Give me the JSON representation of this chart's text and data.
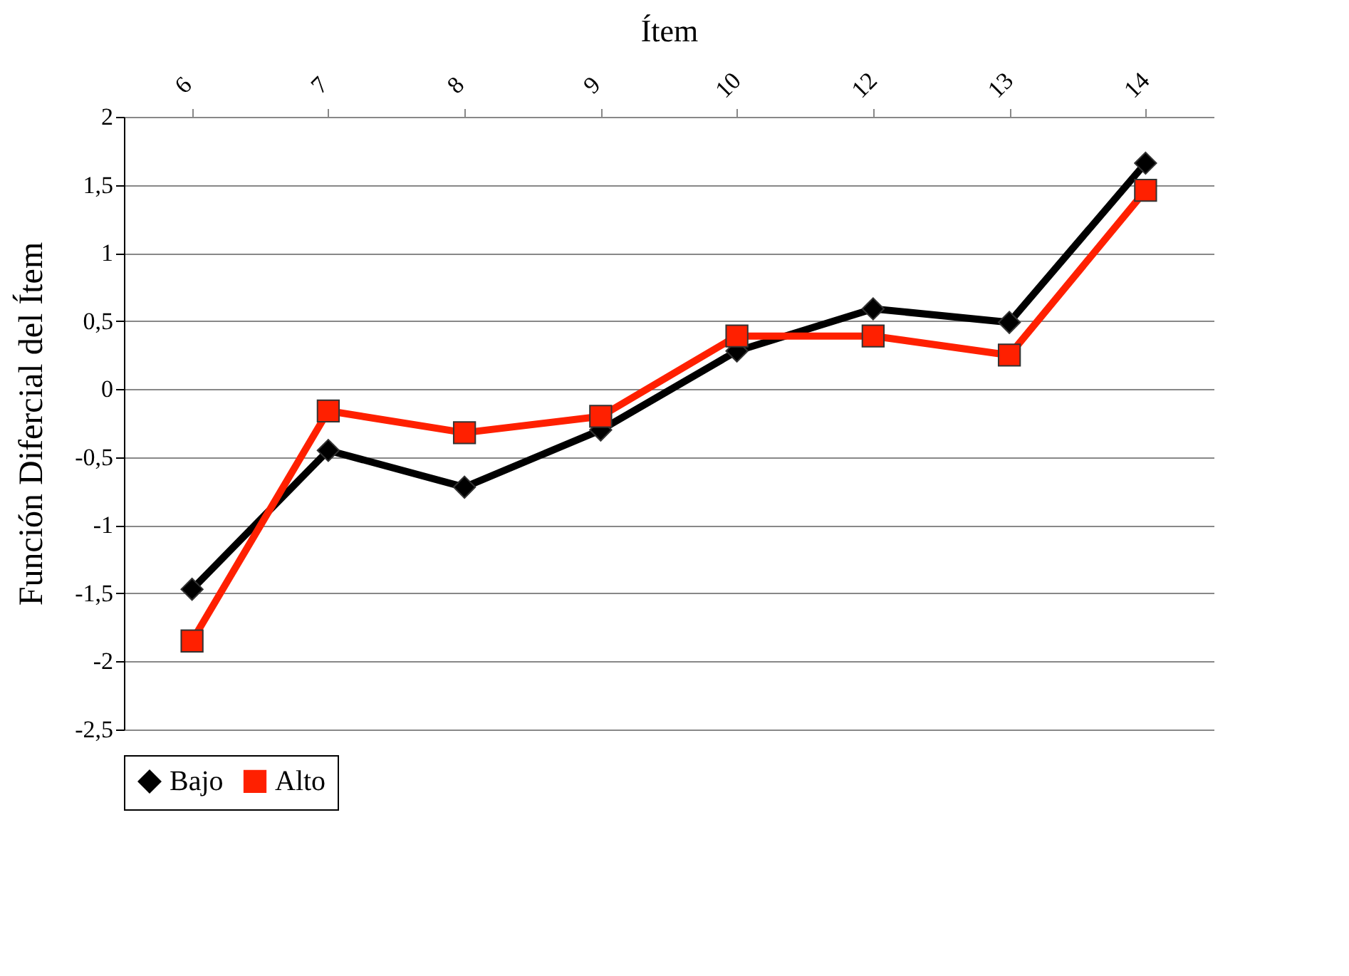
{
  "chart_data": {
    "type": "line",
    "xlabel": "Ítem",
    "ylabel": "Función Difercial del Ítem",
    "categories": [
      "6",
      "7",
      "8",
      "9",
      "10",
      "12",
      "13",
      "14"
    ],
    "series": [
      {
        "name": "Bajo",
        "color": "#000000",
        "marker": "diamond",
        "values": [
          -1.47,
          -0.45,
          -0.72,
          -0.3,
          0.28,
          0.59,
          0.49,
          1.66
        ]
      },
      {
        "name": "Alto",
        "color": "#ff2000",
        "marker": "square",
        "values": [
          -1.85,
          -0.16,
          -0.32,
          -0.2,
          0.39,
          0.39,
          0.25,
          1.46
        ]
      }
    ],
    "ylim": [
      -2.5,
      2
    ],
    "yticks": [
      {
        "value": -2.5,
        "label": "-2,5"
      },
      -2,
      {
        "value": -1.5,
        "label": "-1,5"
      },
      -1,
      {
        "value": -0.5,
        "label": "-0,5"
      },
      0,
      {
        "value": 0.5,
        "label": "0,5"
      },
      1,
      {
        "value": 1.5,
        "label": "1,5"
      },
      2
    ],
    "grid": "y",
    "legend": "bottom",
    "line_style": "solid"
  }
}
